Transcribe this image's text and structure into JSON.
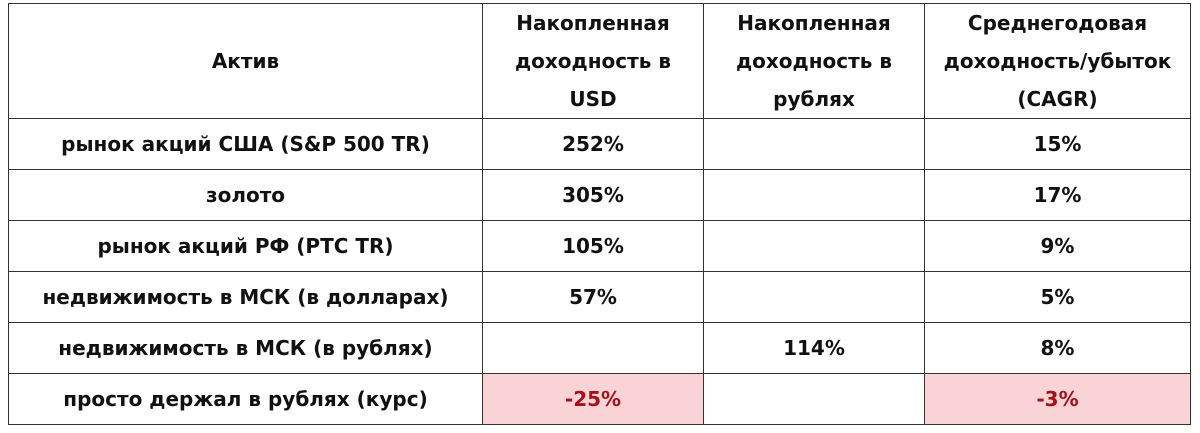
{
  "table": {
    "header": [
      [
        "Актив"
      ],
      [
        "Накопленная",
        "доходность в",
        "USD"
      ],
      [
        "Накопленная",
        "доходность в",
        "рублях"
      ],
      [
        "Среднегодовая",
        "доходность/убыток",
        "(CAGR)"
      ]
    ],
    "rows": [
      [
        "рынок акций США (S&P 500 TR)",
        "252%",
        null,
        "15%"
      ],
      [
        "золото",
        "305%",
        null,
        "17%"
      ],
      [
        "рынок акций РФ (РТС TR)",
        "105%",
        null,
        "9%"
      ],
      [
        "недвижимость в МСК (в долларах)",
        "57%",
        null,
        "5%"
      ],
      [
        "недвижимость в МСК (в рублях)",
        null,
        "114%",
        "8%"
      ],
      [
        "просто держал в рублях (курс)",
        "-25%",
        null,
        "-3%"
      ]
    ]
  }
}
